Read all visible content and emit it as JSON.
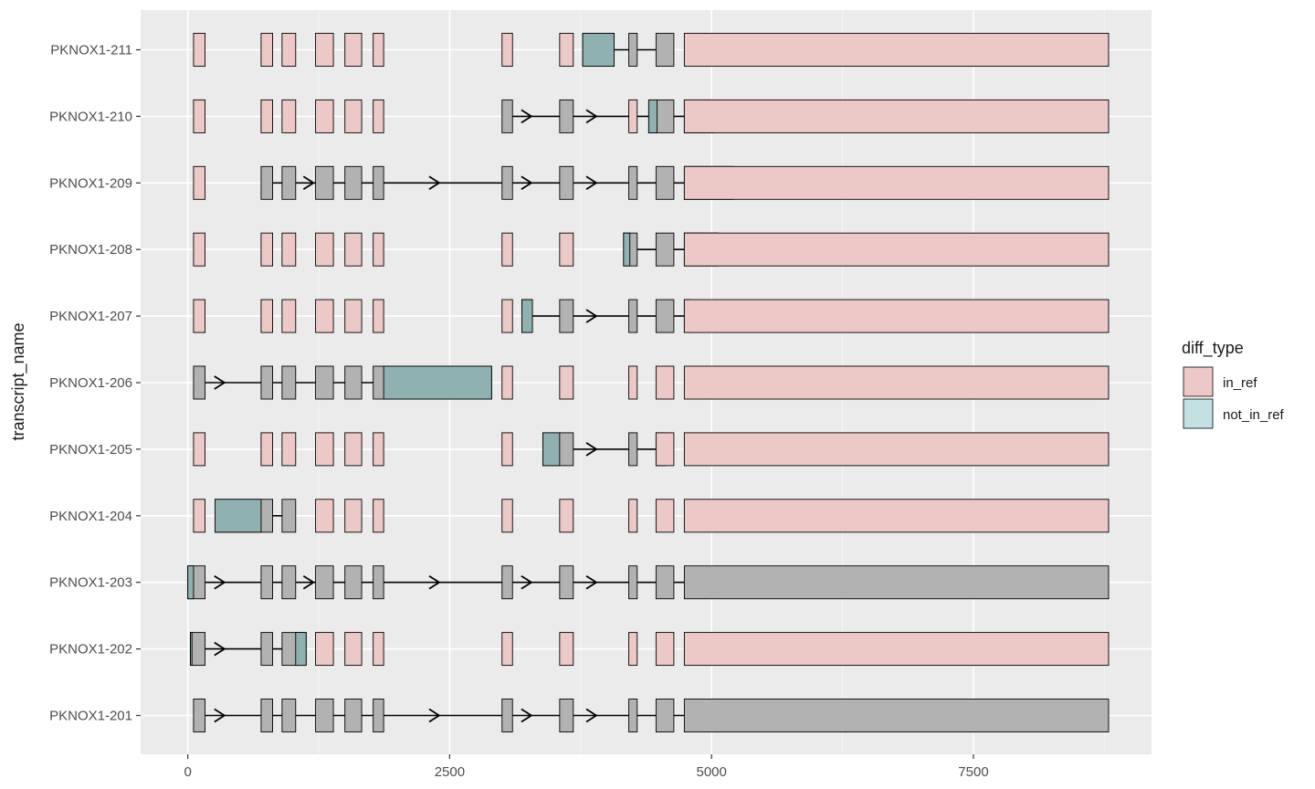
{
  "chart_data": {
    "type": "transcript-structure",
    "ylabel": "transcript_name",
    "xlabel": "",
    "xlim": [
      -450,
      9200
    ],
    "xticks": [
      0,
      2500,
      5000,
      7500
    ],
    "xtick_labels": [
      "0",
      "2500",
      "5000",
      "7500"
    ],
    "grid": true,
    "legend": {
      "title": "diff_type",
      "position": "right",
      "entries": [
        {
          "label": "in_ref",
          "color": "#ecc9c7"
        },
        {
          "label": "not_in_ref",
          "color": "#c3e1e3"
        }
      ]
    },
    "colors": {
      "panel": "#ebebeb",
      "grid_major": "#ffffff",
      "grid_minor": "#f4f4f4",
      "exon_gray": "#b2b2b2",
      "in_ref": "#ecc9c7",
      "in_ref_overlay": "#f2d7d5",
      "not_in_ref": "#8fb1b2",
      "border": "#000000"
    },
    "transcripts": [
      {
        "name": "PKNOX1-201",
        "exons": [
          [
            55,
            165
          ],
          [
            700,
            810
          ],
          [
            900,
            1030
          ],
          [
            1220,
            1390
          ],
          [
            1500,
            1660
          ],
          [
            1770,
            1870
          ],
          [
            3000,
            3100
          ],
          [
            3550,
            3680
          ],
          [
            4210,
            4290
          ],
          [
            4470,
            4640
          ],
          [
            4740,
            8790
          ]
        ],
        "highlights": [],
        "arrows": [
          350,
          2400,
          3280,
          3900
        ]
      },
      {
        "name": "PKNOX1-202",
        "exons": [
          [
            25,
            165
          ],
          [
            700,
            810
          ],
          [
            900,
            1130
          ]
        ],
        "highlights": [
          [
            25,
            40,
            "not_in_ref"
          ],
          [
            1030,
            1130,
            "not_in_ref"
          ]
        ],
        "arrows": [
          350
        ]
      },
      {
        "name": "PKNOX1-203",
        "exons": [
          [
            0,
            165
          ],
          [
            700,
            810
          ],
          [
            900,
            1030
          ],
          [
            1220,
            1390
          ],
          [
            1500,
            1660
          ],
          [
            1770,
            1870
          ],
          [
            3000,
            3100
          ],
          [
            3550,
            3680
          ],
          [
            4210,
            4290
          ],
          [
            4470,
            4640
          ],
          [
            4740,
            8790
          ]
        ],
        "highlights": [
          [
            0,
            55,
            "not_in_ref"
          ]
        ],
        "arrows": [
          350,
          1200,
          2400,
          3280,
          3900
        ]
      },
      {
        "name": "PKNOX1-204",
        "exons": [
          [
            260,
            810
          ],
          [
            900,
            1030
          ]
        ],
        "highlights": [
          [
            260,
            700,
            "not_in_ref"
          ]
        ],
        "arrows": []
      },
      {
        "name": "PKNOX1-205",
        "exons": [
          [
            3390,
            3680
          ],
          [
            4210,
            4290
          ],
          [
            4470,
            4560
          ]
        ],
        "highlights": [
          [
            3390,
            3550,
            "not_in_ref"
          ]
        ],
        "arrows": [
          3900
        ]
      },
      {
        "name": "PKNOX1-206",
        "exons": [
          [
            55,
            165
          ],
          [
            700,
            810
          ],
          [
            900,
            1030
          ],
          [
            1220,
            1390
          ],
          [
            1500,
            1660
          ],
          [
            1770,
            2900
          ]
        ],
        "highlights": [
          [
            1870,
            2900,
            "not_in_ref"
          ]
        ],
        "arrows": [
          350
        ]
      },
      {
        "name": "PKNOX1-207",
        "exons": [
          [
            3190,
            3290
          ],
          [
            3550,
            3680
          ],
          [
            4210,
            4290
          ],
          [
            4470,
            4640
          ],
          [
            4740,
            4800
          ]
        ],
        "highlights": [
          [
            3190,
            3290,
            "not_in_ref"
          ]
        ],
        "arrows": [
          3900
        ]
      },
      {
        "name": "PKNOX1-208",
        "exons": [
          [
            4160,
            4290
          ],
          [
            4470,
            4640
          ],
          [
            4740,
            5060
          ]
        ],
        "highlights": [
          [
            4160,
            4220,
            "not_in_ref"
          ]
        ],
        "arrows": []
      },
      {
        "name": "PKNOX1-209",
        "exons": [
          [
            700,
            810
          ],
          [
            900,
            1030
          ],
          [
            1220,
            1390
          ],
          [
            1500,
            1660
          ],
          [
            1770,
            1870
          ],
          [
            3000,
            3100
          ],
          [
            3550,
            3680
          ],
          [
            4210,
            4290
          ],
          [
            4470,
            4640
          ],
          [
            4740,
            5200
          ]
        ],
        "highlights": [],
        "arrows": [
          1200,
          2400,
          3280,
          3900
        ]
      },
      {
        "name": "PKNOX1-210",
        "exons": [
          [
            3000,
            3100
          ],
          [
            3550,
            3680
          ],
          [
            4400,
            4640
          ],
          [
            4740,
            5020
          ]
        ],
        "highlights": [
          [
            4400,
            4480,
            "not_in_ref"
          ]
        ],
        "arrows": [
          3280,
          3900
        ]
      },
      {
        "name": "PKNOX1-211",
        "exons": [
          [
            3770,
            4070
          ],
          [
            4210,
            4290
          ],
          [
            4470,
            4640
          ]
        ],
        "highlights": [
          [
            3770,
            4070,
            "not_in_ref"
          ]
        ],
        "arrows": []
      }
    ],
    "reference_exons": [
      [
        55,
        165
      ],
      [
        700,
        810
      ],
      [
        900,
        1030
      ],
      [
        1220,
        1390
      ],
      [
        1500,
        1660
      ],
      [
        1770,
        1870
      ],
      [
        3000,
        3100
      ],
      [
        3550,
        3680
      ],
      [
        4210,
        4290
      ],
      [
        4470,
        4640
      ],
      [
        4740,
        8790
      ]
    ]
  }
}
